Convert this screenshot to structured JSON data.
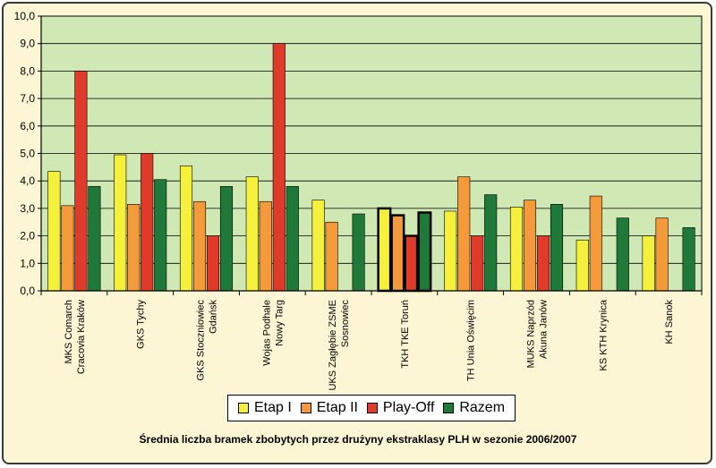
{
  "chart_data": {
    "type": "bar",
    "title": "Średnia liczba bramek zbobytych przez drużyny ekstraklasy PLH w sezonie 2006/2007",
    "xlabel": "",
    "ylabel": "",
    "ylim": [
      0,
      10
    ],
    "yticks": [
      "0,0",
      "1,0",
      "2,0",
      "3,0",
      "4,0",
      "5,0",
      "6,0",
      "7,0",
      "8,0",
      "9,0",
      "10,0"
    ],
    "grid": true,
    "legend_position": "bottom",
    "categories": [
      [
        "MKS Comarch",
        "Cracovia Kraków"
      ],
      [
        "GKS Tychy"
      ],
      [
        "GKS Stoczniowiec",
        "Gdańsk"
      ],
      [
        "Wojas Podhale",
        "Nowy Targ"
      ],
      [
        "UKS Zagłębie ZSME",
        "Sosnowiec"
      ],
      [
        "TKH TKE Toruń"
      ],
      [
        "TH Unia Oświęcim"
      ],
      [
        "MUKS Naprzód",
        "Akuna Janów"
      ],
      [
        "KS KTH Krynica"
      ],
      [
        "KH Sanok"
      ]
    ],
    "highlight_category": 5,
    "series": [
      {
        "name": "Etap I",
        "color": "#f4f03c",
        "values": [
          4.35,
          4.95,
          4.55,
          4.15,
          3.3,
          3.0,
          2.9,
          3.05,
          1.85,
          2.0
        ]
      },
      {
        "name": "Etap II",
        "color": "#f59a3a",
        "values": [
          3.1,
          3.15,
          3.25,
          3.25,
          2.5,
          2.75,
          4.15,
          3.3,
          3.45,
          2.65
        ]
      },
      {
        "name": "Play-Off",
        "color": "#e03a2a",
        "values": [
          8.0,
          5.0,
          2.0,
          9.0,
          null,
          2.0,
          2.0,
          2.0,
          null,
          null
        ]
      },
      {
        "name": "Razem",
        "color": "#1f7a3a",
        "values": [
          3.8,
          4.05,
          3.8,
          3.8,
          2.8,
          2.85,
          3.5,
          3.15,
          2.65,
          2.3
        ]
      }
    ],
    "plot_background": "#cfe8b4"
  }
}
